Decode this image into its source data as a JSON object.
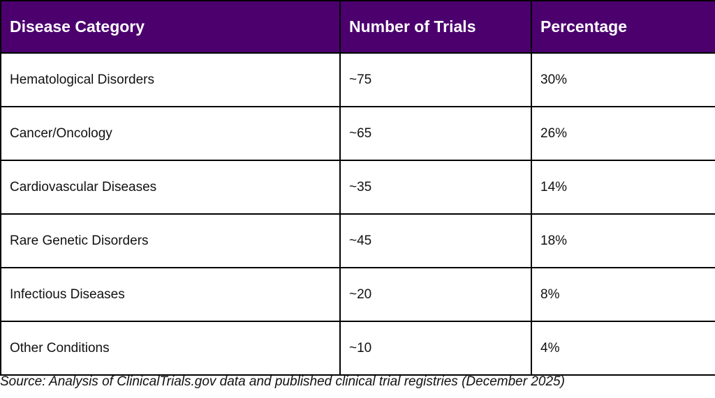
{
  "table": {
    "header": [
      "Disease Category",
      "Number of Trials",
      "Percentage"
    ],
    "rows": [
      [
        "Hematological Disorders",
        "~75",
        "30%"
      ],
      [
        "Cancer/Oncology",
        "~65",
        "26%"
      ],
      [
        "Cardiovascular Diseases",
        "~35",
        "14%"
      ],
      [
        "Rare Genetic Disorders",
        "~45",
        "18%"
      ],
      [
        "Infectious Diseases",
        "~20",
        "8%"
      ],
      [
        "Other Conditions",
        "~10",
        "4%"
      ]
    ]
  },
  "source": "Source: Analysis of ClinicalTrials.gov data and published clinical trial registries (December 2025)"
}
